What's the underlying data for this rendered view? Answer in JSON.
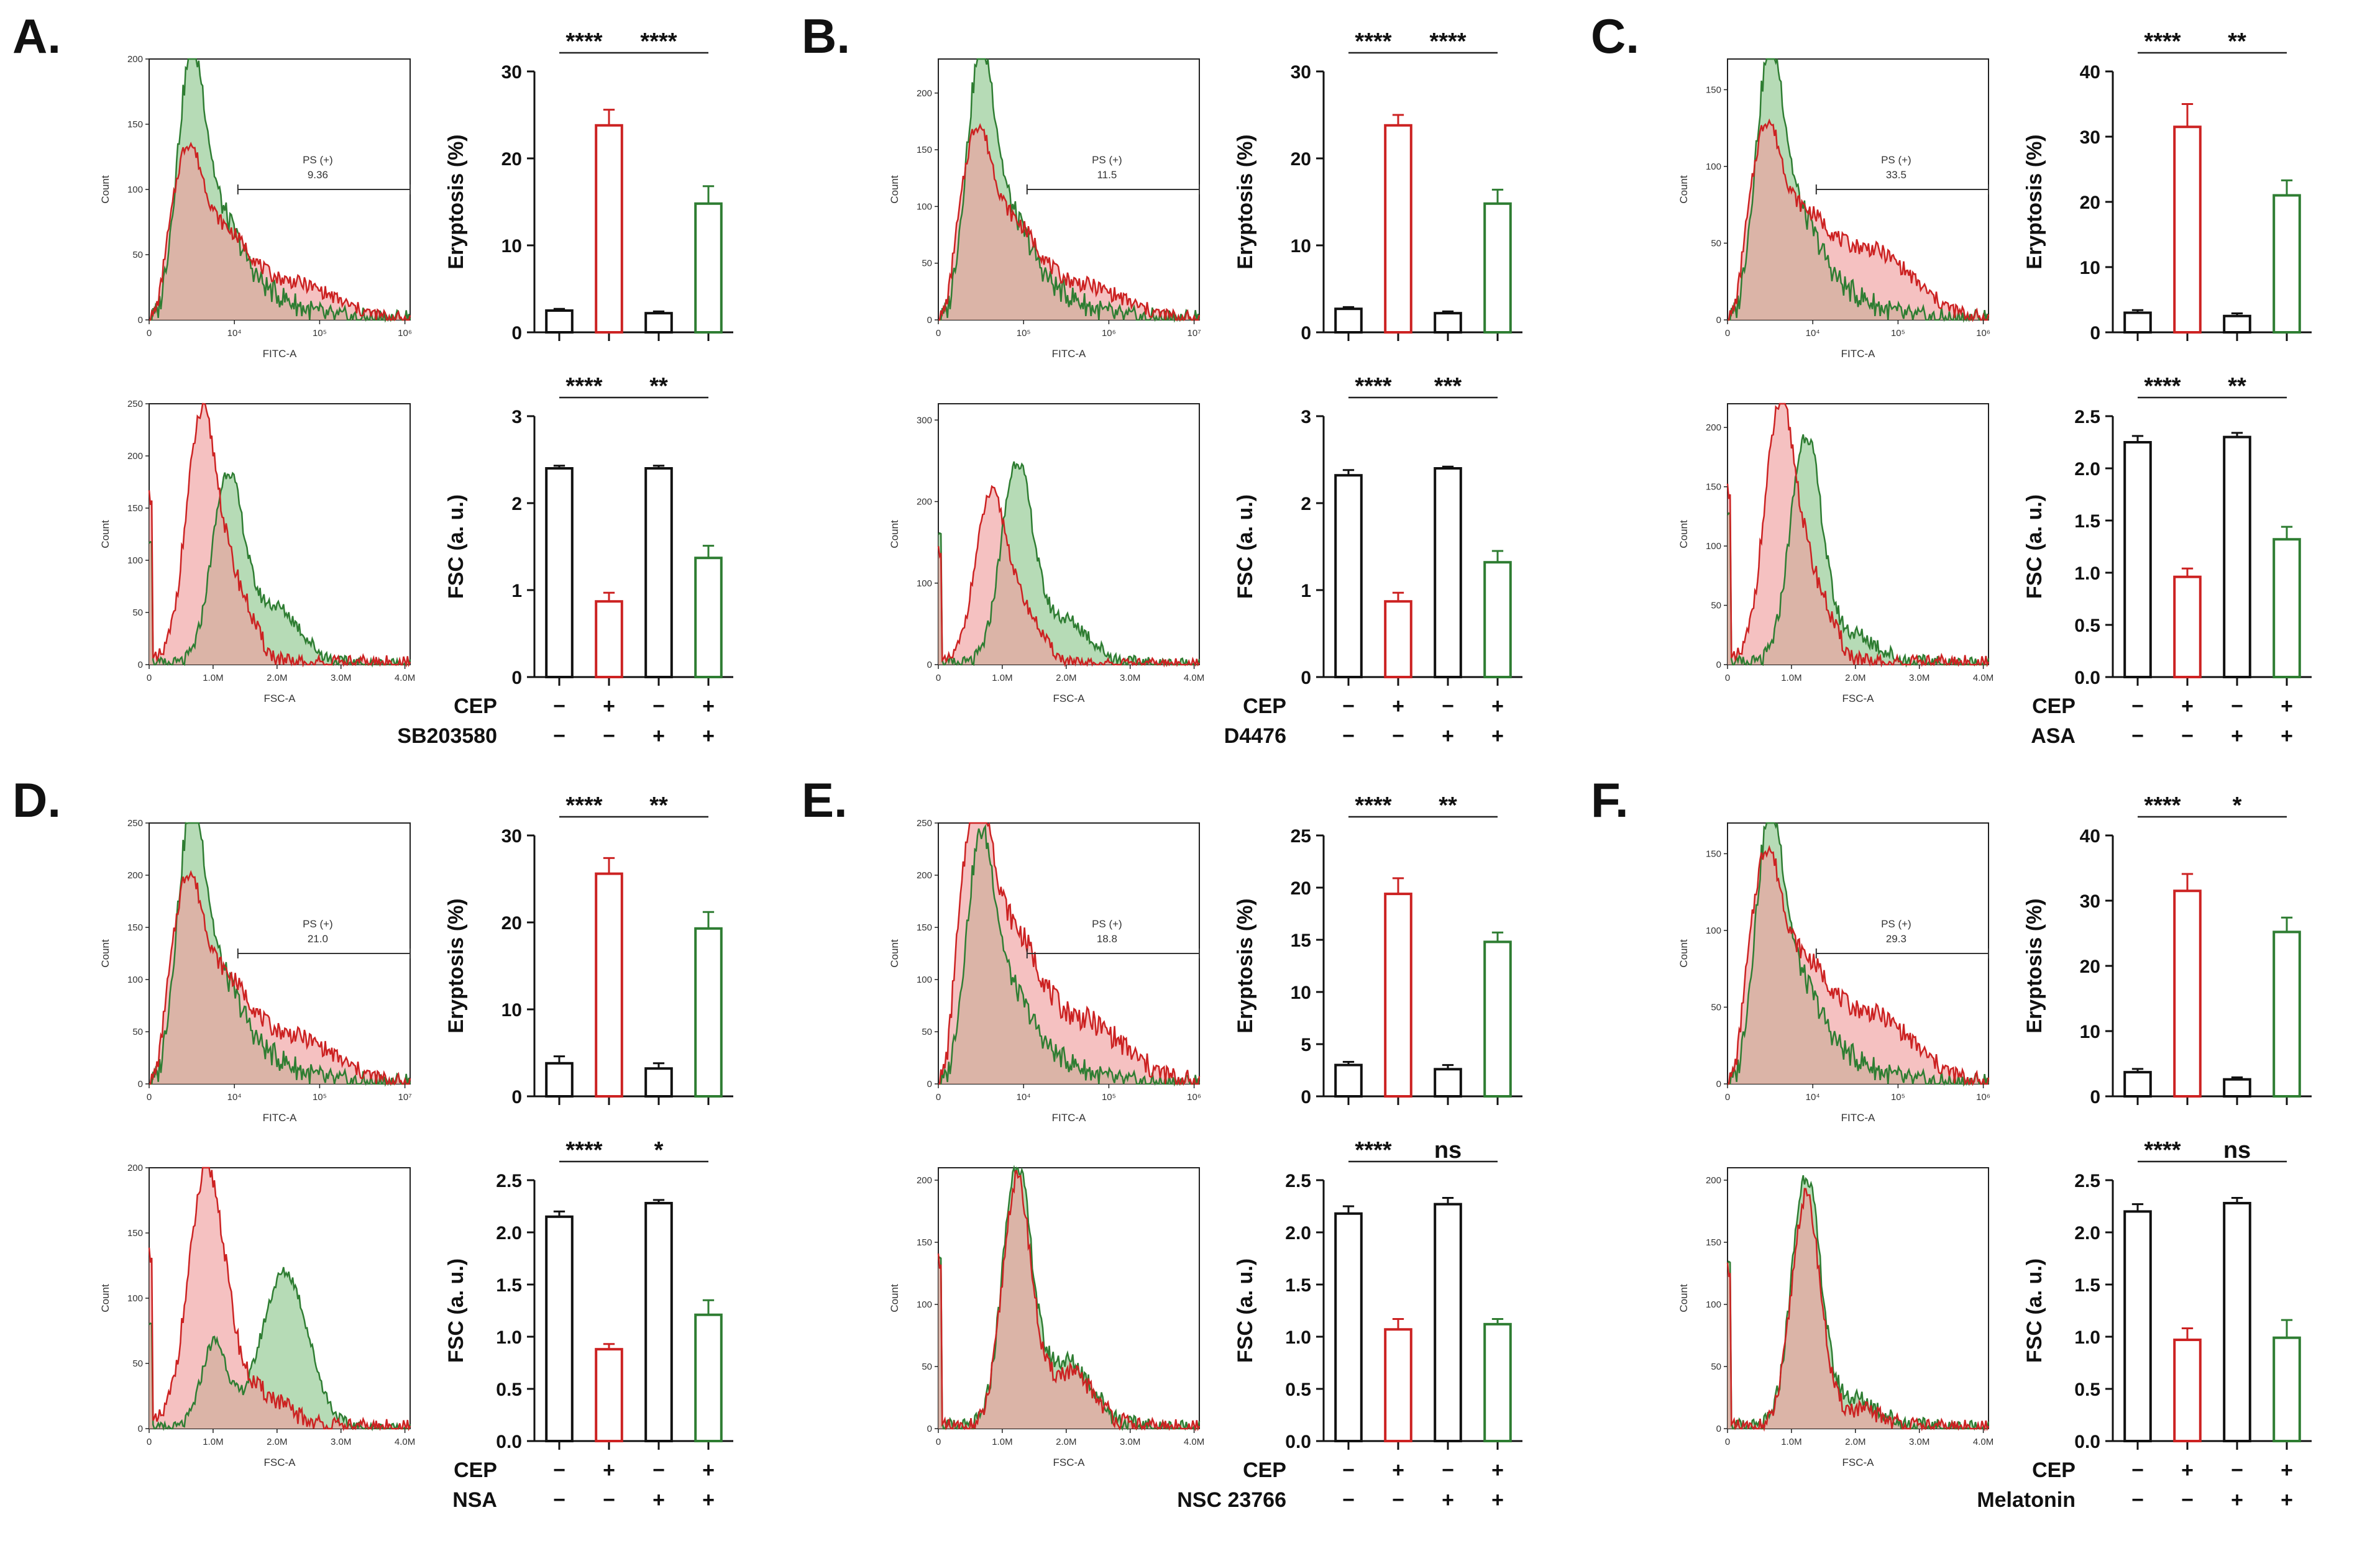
{
  "colors": {
    "control": "#111111",
    "cep": "#cc2222",
    "inhibitor": "#2e7d32",
    "red_fill": "#f0a0a0",
    "green_fill": "#9ecf9e"
  },
  "chart_data": [
    {
      "panel": "A.",
      "inhibitor": "SB203580",
      "cep_signs": [
        "−",
        "+",
        "−",
        "+"
      ],
      "inhibitor_signs": [
        "−",
        "−",
        "+",
        "+"
      ],
      "eryptosis_hist": {
        "type": "histogram",
        "xlabel": "FITC-A",
        "ylabel": "Count",
        "yticks": [
          "0",
          "50",
          "100",
          "150",
          "200"
        ],
        "ymax": 200,
        "xticks": [
          "0",
          "10⁴",
          "10⁵",
          "10⁶"
        ],
        "gate_label": "PS (+)",
        "gate_value": "9.36",
        "kind": "fitc",
        "green_peak": 185,
        "red_peak": 110,
        "red_tail": 28
      },
      "fsc_hist": {
        "type": "histogram",
        "xlabel": "FSC-A",
        "ylabel": "Count",
        "yticks": [
          "0",
          "50",
          "100",
          "150",
          "200",
          "250"
        ],
        "ymax": 250,
        "xticks": [
          "0",
          "1.0M",
          "2.0M",
          "3.0M",
          "4.0M"
        ],
        "kind": "fsc",
        "green_peak": 175,
        "red_peak": 230,
        "shoulder": 55
      },
      "eryptosis_bar": {
        "type": "bar",
        "ylabel": "Eryptosis (%)",
        "ylim": [
          0,
          30
        ],
        "yticks": [
          "0",
          "10",
          "20",
          "30"
        ],
        "values": [
          2.5,
          23.8,
          2.2,
          14.8
        ],
        "errors": [
          0.2,
          1.8,
          0.2,
          2.0
        ],
        "sig": [
          {
            "label": "****",
            "from": 0,
            "to": 1
          },
          {
            "label": "****",
            "from": 1,
            "to": 3
          }
        ]
      },
      "fsc_bar": {
        "type": "bar",
        "ylabel": "FSC (a. u.)",
        "ylim": [
          0,
          3
        ],
        "yticks": [
          "0",
          "1",
          "2",
          "3"
        ],
        "values": [
          2.4,
          0.87,
          2.4,
          1.37
        ],
        "errors": [
          0.03,
          0.1,
          0.03,
          0.14
        ],
        "sig": [
          {
            "label": "****",
            "from": 0,
            "to": 1
          },
          {
            "label": "**",
            "from": 1,
            "to": 3
          }
        ]
      }
    },
    {
      "panel": "B.",
      "inhibitor": "D4476",
      "cep_signs": [
        "−",
        "+",
        "−",
        "+"
      ],
      "inhibitor_signs": [
        "−",
        "−",
        "+",
        "+"
      ],
      "eryptosis_hist": {
        "type": "histogram",
        "xlabel": "FITC-A",
        "ylabel": "Count",
        "yticks": [
          "0",
          "50",
          "100",
          "150",
          "200"
        ],
        "ymax": 230,
        "xticks": [
          "0",
          "10⁵",
          "10⁶",
          "10⁷"
        ],
        "gate_label": "PS (+)",
        "gate_value": "11.5",
        "kind": "fitc",
        "green_peak": 215,
        "red_peak": 140,
        "red_tail": 30
      },
      "fsc_hist": {
        "type": "histogram",
        "xlabel": "FSC-A",
        "ylabel": "Count",
        "yticks": [
          "0",
          "100",
          "200",
          "300"
        ],
        "ymax": 320,
        "xticks": [
          "0",
          "1.0M",
          "2.0M",
          "3.0M",
          "4.0M"
        ],
        "kind": "fsc",
        "green_peak": 240,
        "red_peak": 200,
        "shoulder": 55
      },
      "eryptosis_bar": {
        "type": "bar",
        "ylabel": "Eryptosis (%)",
        "ylim": [
          0,
          30
        ],
        "yticks": [
          "0",
          "10",
          "20",
          "30"
        ],
        "values": [
          2.7,
          23.8,
          2.2,
          14.8
        ],
        "errors": [
          0.2,
          1.2,
          0.2,
          1.6
        ],
        "sig": [
          {
            "label": "****",
            "from": 0,
            "to": 1
          },
          {
            "label": "****",
            "from": 1,
            "to": 3
          }
        ]
      },
      "fsc_bar": {
        "type": "bar",
        "ylabel": "FSC (a. u.)",
        "ylim": [
          0,
          3
        ],
        "yticks": [
          "0",
          "1",
          "2",
          "3"
        ],
        "values": [
          2.32,
          0.87,
          2.4,
          1.32
        ],
        "errors": [
          0.06,
          0.1,
          0.02,
          0.13
        ],
        "sig": [
          {
            "label": "****",
            "from": 0,
            "to": 1
          },
          {
            "label": "***",
            "from": 1,
            "to": 3
          }
        ]
      }
    },
    {
      "panel": "C.",
      "inhibitor": "ASA",
      "cep_signs": [
        "−",
        "+",
        "−",
        "+"
      ],
      "inhibitor_signs": [
        "−",
        "−",
        "+",
        "+"
      ],
      "eryptosis_hist": {
        "type": "histogram",
        "xlabel": "FITC-A",
        "ylabel": "Count",
        "yticks": [
          "0",
          "50",
          "100",
          "150"
        ],
        "ymax": 170,
        "xticks": [
          "0",
          "10⁴",
          "10⁵",
          "10⁶"
        ],
        "gate_label": "PS (+)",
        "gate_value": "33.5",
        "kind": "fitc",
        "green_peak": 160,
        "red_peak": 105,
        "red_tail": 45
      },
      "fsc_hist": {
        "type": "histogram",
        "xlabel": "FSC-A",
        "ylabel": "Count",
        "yticks": [
          "0",
          "50",
          "100",
          "150",
          "200"
        ],
        "ymax": 220,
        "xticks": [
          "0",
          "1.0M",
          "2.0M",
          "3.0M",
          "4.0M"
        ],
        "kind": "fsc",
        "green_peak": 190,
        "red_peak": 210,
        "shoulder": 25
      },
      "eryptosis_bar": {
        "type": "bar",
        "ylabel": "Eryptosis (%)",
        "ylim": [
          0,
          40
        ],
        "yticks": [
          "0",
          "10",
          "20",
          "30",
          "40"
        ],
        "values": [
          3.0,
          31.5,
          2.5,
          21.0
        ],
        "errors": [
          0.4,
          3.5,
          0.4,
          2.3
        ],
        "sig": [
          {
            "label": "****",
            "from": 0,
            "to": 1
          },
          {
            "label": "**",
            "from": 1,
            "to": 3
          }
        ]
      },
      "fsc_bar": {
        "type": "bar",
        "ylabel": "FSC (a. u.)",
        "ylim": [
          0,
          2.5
        ],
        "yticks": [
          "0.0",
          "0.5",
          "1.0",
          "1.5",
          "2.0",
          "2.5"
        ],
        "values": [
          2.25,
          0.96,
          2.3,
          1.32
        ],
        "errors": [
          0.06,
          0.08,
          0.04,
          0.12
        ],
        "sig": [
          {
            "label": "****",
            "from": 0,
            "to": 1
          },
          {
            "label": "**",
            "from": 1,
            "to": 3
          }
        ]
      }
    },
    {
      "panel": "D.",
      "inhibitor": "NSA",
      "cep_signs": [
        "−",
        "+",
        "−",
        "+"
      ],
      "inhibitor_signs": [
        "−",
        "−",
        "+",
        "+"
      ],
      "eryptosis_hist": {
        "type": "histogram",
        "xlabel": "FITC-A",
        "ylabel": "Count",
        "yticks": [
          "0",
          "50",
          "100",
          "150",
          "200",
          "250"
        ],
        "ymax": 250,
        "xticks": [
          "0",
          "10⁴",
          "10⁵",
          "10⁷"
        ],
        "gate_label": "PS (+)",
        "gate_value": "21.0",
        "kind": "fitc",
        "green_peak": 240,
        "red_peak": 165,
        "red_tail": 45
      },
      "fsc_hist": {
        "type": "histogram",
        "xlabel": "FSC-A",
        "ylabel": "Count",
        "yticks": [
          "0",
          "50",
          "100",
          "150",
          "200"
        ],
        "ymax": 200,
        "xticks": [
          "0",
          "1.0M",
          "2.0M",
          "3.0M",
          "4.0M"
        ],
        "kind": "fsc_shift",
        "green_peak": 120,
        "red_peak": 190,
        "shoulder": 0
      },
      "eryptosis_bar": {
        "type": "bar",
        "ylabel": "Eryptosis (%)",
        "ylim": [
          0,
          30
        ],
        "yticks": [
          "0",
          "10",
          "20",
          "30"
        ],
        "values": [
          3.8,
          25.6,
          3.2,
          19.3
        ],
        "errors": [
          0.8,
          1.8,
          0.6,
          1.9
        ],
        "sig": [
          {
            "label": "****",
            "from": 0,
            "to": 1
          },
          {
            "label": "**",
            "from": 1,
            "to": 3
          }
        ]
      },
      "fsc_bar": {
        "type": "bar",
        "ylabel": "FSC (a. u.)",
        "ylim": [
          0,
          2.5
        ],
        "yticks": [
          "0.0",
          "0.5",
          "1.0",
          "1.5",
          "2.0",
          "2.5"
        ],
        "values": [
          2.15,
          0.88,
          2.28,
          1.21
        ],
        "errors": [
          0.05,
          0.05,
          0.03,
          0.14
        ],
        "sig": [
          {
            "label": "****",
            "from": 0,
            "to": 1
          },
          {
            "label": "*",
            "from": 1,
            "to": 3
          }
        ]
      }
    },
    {
      "panel": "E.",
      "inhibitor": "NSC 23766",
      "cep_signs": [
        "−",
        "+",
        "−",
        "+"
      ],
      "inhibitor_signs": [
        "−",
        "−",
        "+",
        "+"
      ],
      "eryptosis_hist": {
        "type": "histogram",
        "xlabel": "FITC-A",
        "ylabel": "Count",
        "yticks": [
          "0",
          "50",
          "100",
          "150",
          "200",
          "250"
        ],
        "ymax": 250,
        "xticks": [
          "0",
          "10⁴",
          "10⁵",
          "10⁶"
        ],
        "gate_label": "PS (+)",
        "gate_value": "18.8",
        "kind": "fitc",
        "green_peak": 215,
        "red_peak": 235,
        "red_tail": 60
      },
      "fsc_hist": {
        "type": "histogram",
        "xlabel": "FSC-A",
        "ylabel": "Count",
        "yticks": [
          "0",
          "50",
          "100",
          "150",
          "200"
        ],
        "ymax": 210,
        "xticks": [
          "0",
          "1.0M",
          "2.0M",
          "3.0M",
          "4.0M"
        ],
        "kind": "fsc_overlap",
        "green_peak": 205,
        "red_peak": 195,
        "shoulder": 45
      },
      "eryptosis_bar": {
        "type": "bar",
        "ylabel": "Eryptosis (%)",
        "ylim": [
          0,
          25
        ],
        "yticks": [
          "0",
          "5",
          "10",
          "15",
          "20",
          "25"
        ],
        "values": [
          3.0,
          19.4,
          2.6,
          14.8
        ],
        "errors": [
          0.3,
          1.5,
          0.4,
          0.9
        ],
        "sig": [
          {
            "label": "****",
            "from": 0,
            "to": 1
          },
          {
            "label": "**",
            "from": 1,
            "to": 3
          }
        ]
      },
      "fsc_bar": {
        "type": "bar",
        "ylabel": "FSC (a. u.)",
        "ylim": [
          0,
          2.5
        ],
        "yticks": [
          "0.0",
          "0.5",
          "1.0",
          "1.5",
          "2.0",
          "2.5"
        ],
        "values": [
          2.18,
          1.07,
          2.27,
          1.12
        ],
        "errors": [
          0.07,
          0.1,
          0.06,
          0.05
        ],
        "sig": [
          {
            "label": "****",
            "from": 0,
            "to": 1
          },
          {
            "label": "ns",
            "from": 1,
            "to": 3
          }
        ]
      }
    },
    {
      "panel": "F.",
      "inhibitor": "Melatonin",
      "cep_signs": [
        "−",
        "+",
        "−",
        "+"
      ],
      "inhibitor_signs": [
        "−",
        "−",
        "+",
        "+"
      ],
      "eryptosis_hist": {
        "type": "histogram",
        "xlabel": "FITC-A",
        "ylabel": "Count",
        "yticks": [
          "0",
          "50",
          "100",
          "150"
        ],
        "ymax": 170,
        "xticks": [
          "0",
          "10⁴",
          "10⁵",
          "10⁶"
        ],
        "gate_label": "PS (+)",
        "gate_value": "29.3",
        "kind": "fitc",
        "green_peak": 160,
        "red_peak": 125,
        "red_tail": 45
      },
      "fsc_hist": {
        "type": "histogram",
        "xlabel": "FSC-A",
        "ylabel": "Count",
        "yticks": [
          "0",
          "50",
          "100",
          "150",
          "200"
        ],
        "ymax": 210,
        "xticks": [
          "0",
          "1.0M",
          "2.0M",
          "3.0M",
          "4.0M"
        ],
        "kind": "fsc_overlap",
        "green_peak": 200,
        "red_peak": 185,
        "shoulder": 15
      },
      "eryptosis_bar": {
        "type": "bar",
        "ylabel": "Eryptosis (%)",
        "ylim": [
          0,
          40
        ],
        "yticks": [
          "0",
          "10",
          "20",
          "30",
          "40"
        ],
        "values": [
          3.7,
          31.5,
          2.6,
          25.2
        ],
        "errors": [
          0.5,
          2.6,
          0.3,
          2.2
        ],
        "sig": [
          {
            "label": "****",
            "from": 0,
            "to": 1
          },
          {
            "label": "*",
            "from": 1,
            "to": 3
          }
        ]
      },
      "fsc_bar": {
        "type": "bar",
        "ylabel": "FSC (a. u.)",
        "ylim": [
          0,
          2.5
        ],
        "yticks": [
          "0.0",
          "0.5",
          "1.0",
          "1.5",
          "2.0",
          "2.5"
        ],
        "values": [
          2.2,
          0.97,
          2.28,
          0.99
        ],
        "errors": [
          0.07,
          0.11,
          0.05,
          0.17
        ],
        "sig": [
          {
            "label": "****",
            "from": 0,
            "to": 1
          },
          {
            "label": "ns",
            "from": 1,
            "to": 3
          }
        ]
      }
    }
  ]
}
